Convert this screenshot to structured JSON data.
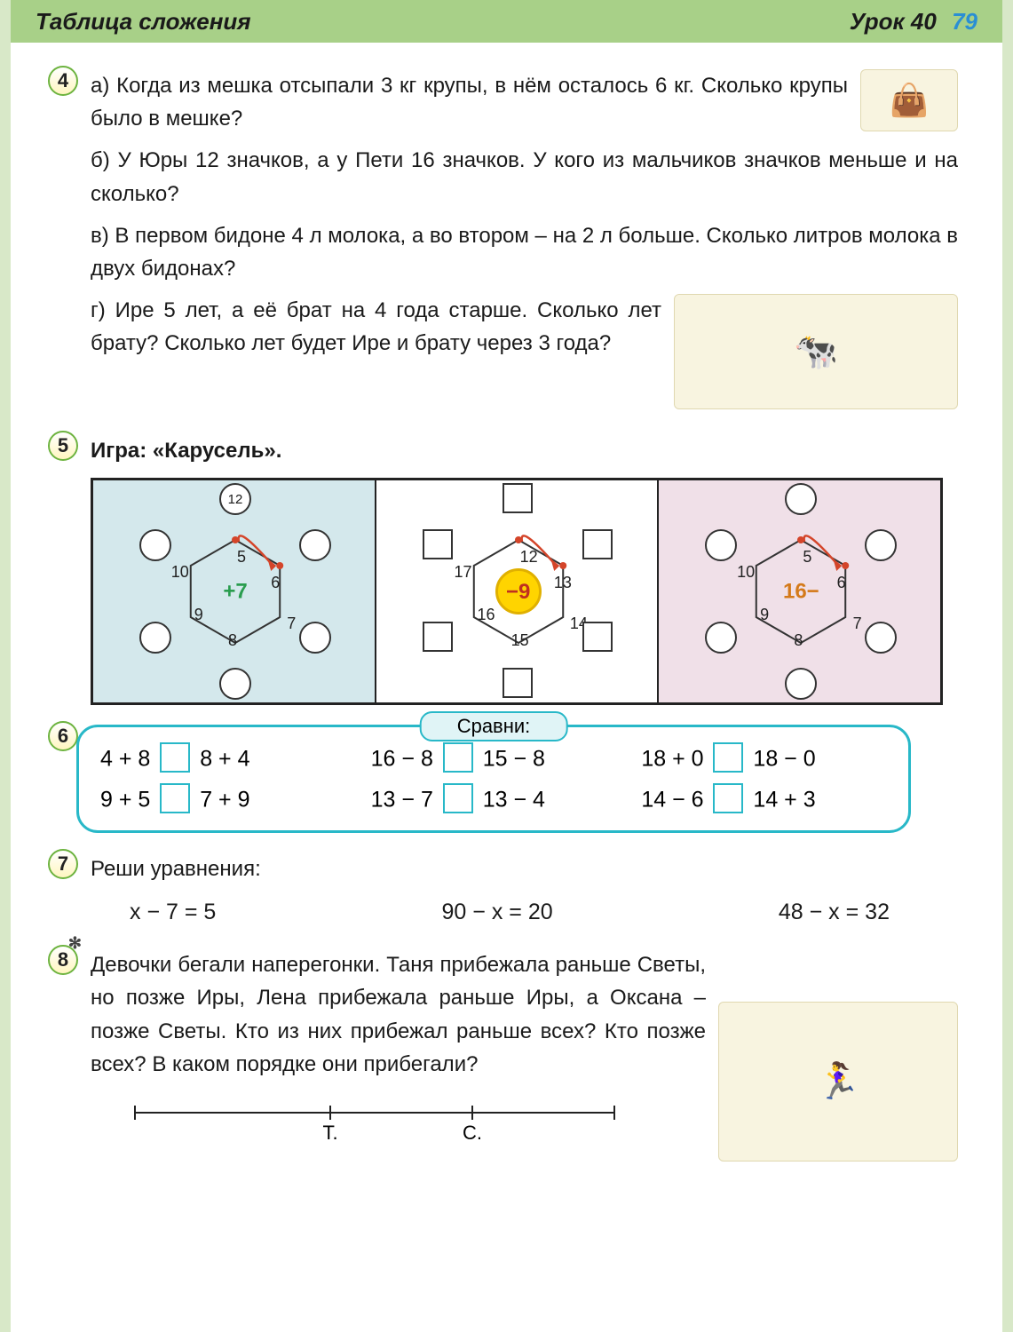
{
  "header": {
    "title": "Таблица сложения",
    "lesson": "Урок 40",
    "page": "79"
  },
  "task4": {
    "num": "4",
    "a": "а) Когда из мешка отсыпали 3 кг крупы, в нём осталось 6 кг. Сколько крупы было в мешке?",
    "b": "б) У Юры 12 значков, а у Пети 16 значков. У кого из мальчиков значков меньше и на сколько?",
    "c": "в) В первом бидоне 4 л молока, а во втором – на 2 л больше. Сколько литров молока в двух бидонах?",
    "d": "г) Ире 5 лет, а её брат на 4 года старше. Сколько лет брату? Сколько лет будет Ире и брату через 3 года?"
  },
  "task5": {
    "num": "5",
    "title": "Игра: «Карусель».",
    "carousels": [
      {
        "bg": "cell-blue",
        "center": "+7",
        "center_color": "#2a9d4f",
        "node_shape": "circle",
        "vertices": [
          "5",
          "6",
          "7",
          "8",
          "9",
          "10"
        ],
        "topnode": "12"
      },
      {
        "bg": "cell-white",
        "center": "−9",
        "center_style": "yellow",
        "node_shape": "square",
        "vertices": [
          "12",
          "13",
          "14",
          "15",
          "16",
          "17"
        ]
      },
      {
        "bg": "cell-pink",
        "center": "16−",
        "center_color": "#d47a1a",
        "node_shape": "circle",
        "vertices": [
          "5",
          "6",
          "7",
          "8",
          "9",
          "10"
        ]
      }
    ]
  },
  "task6": {
    "num": "6",
    "title": "Сравни:",
    "rows": [
      [
        {
          "l": "4 + 8",
          "r": "8 + 4"
        },
        {
          "l": "16 − 8",
          "r": "15 − 8"
        },
        {
          "l": "18 + 0",
          "r": "18 − 0"
        }
      ],
      [
        {
          "l": "9 + 5",
          "r": "7 + 9"
        },
        {
          "l": "13 − 7",
          "r": "13 − 4"
        },
        {
          "l": "14 − 6",
          "r": "14 + 3"
        }
      ]
    ]
  },
  "task7": {
    "num": "7",
    "title": "Реши уравнения:",
    "eqs": [
      "x − 7 = 5",
      "90 − x = 20",
      "48 − x = 32"
    ]
  },
  "task8": {
    "num": "8",
    "text": "Девочки бегали наперегонки. Таня прибежала раньше Светы, но позже Иры, Лена прибежала раньше Иры, а Оксана – позже Светы. Кто из них прибежал раньше всех? Кто позже всех? В каком порядке они прибегали?",
    "marks": [
      "Т.",
      "С."
    ]
  }
}
